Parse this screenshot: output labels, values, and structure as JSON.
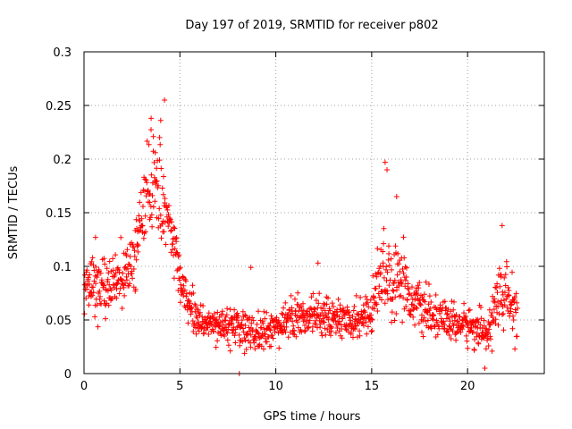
{
  "chart_data": {
    "type": "scatter",
    "title": "Day 197 of 2019, SRMTID for receiver p802",
    "xlabel": "GPS time / hours",
    "ylabel": "SRMTID / TECUs",
    "xlim": [
      0,
      24
    ],
    "ylim": [
      0,
      0.3
    ],
    "xticks": [
      0,
      5,
      10,
      15,
      20
    ],
    "yticks": [
      0,
      0.05,
      0.1,
      0.15,
      0.2,
      0.25,
      0.3
    ],
    "xtick_labels": [
      "0",
      "5",
      "10",
      "15",
      "20"
    ],
    "ytick_labels": [
      "0",
      "0.05",
      "0.1",
      "0.15",
      "0.2",
      "0.25",
      "0.3"
    ],
    "grid": true,
    "marker": "+",
    "color": "#ff0000",
    "profile": [
      {
        "x": 0.0,
        "center": 0.08,
        "spread": 0.022
      },
      {
        "x": 0.5,
        "center": 0.082,
        "spread": 0.022
      },
      {
        "x": 1.0,
        "center": 0.078,
        "spread": 0.022
      },
      {
        "x": 1.5,
        "center": 0.085,
        "spread": 0.022
      },
      {
        "x": 2.0,
        "center": 0.09,
        "spread": 0.025
      },
      {
        "x": 2.5,
        "center": 0.1,
        "spread": 0.025
      },
      {
        "x": 3.0,
        "center": 0.145,
        "spread": 0.035
      },
      {
        "x": 3.5,
        "center": 0.18,
        "spread": 0.04
      },
      {
        "x": 4.0,
        "center": 0.17,
        "spread": 0.04
      },
      {
        "x": 4.5,
        "center": 0.14,
        "spread": 0.035
      },
      {
        "x": 5.0,
        "center": 0.085,
        "spread": 0.02
      },
      {
        "x": 5.5,
        "center": 0.065,
        "spread": 0.018
      },
      {
        "x": 6.0,
        "center": 0.05,
        "spread": 0.016
      },
      {
        "x": 7.0,
        "center": 0.045,
        "spread": 0.015
      },
      {
        "x": 8.0,
        "center": 0.042,
        "spread": 0.015
      },
      {
        "x": 9.0,
        "center": 0.038,
        "spread": 0.016
      },
      {
        "x": 10.0,
        "center": 0.045,
        "spread": 0.016
      },
      {
        "x": 11.0,
        "center": 0.05,
        "spread": 0.016
      },
      {
        "x": 12.0,
        "center": 0.055,
        "spread": 0.016
      },
      {
        "x": 13.0,
        "center": 0.052,
        "spread": 0.016
      },
      {
        "x": 14.0,
        "center": 0.048,
        "spread": 0.015
      },
      {
        "x": 15.0,
        "center": 0.06,
        "spread": 0.018
      },
      {
        "x": 15.5,
        "center": 0.1,
        "spread": 0.04
      },
      {
        "x": 16.0,
        "center": 0.085,
        "spread": 0.03
      },
      {
        "x": 16.5,
        "center": 0.095,
        "spread": 0.03
      },
      {
        "x": 17.0,
        "center": 0.07,
        "spread": 0.02
      },
      {
        "x": 18.0,
        "center": 0.055,
        "spread": 0.016
      },
      {
        "x": 19.0,
        "center": 0.048,
        "spread": 0.016
      },
      {
        "x": 20.0,
        "center": 0.045,
        "spread": 0.016
      },
      {
        "x": 21.0,
        "center": 0.038,
        "spread": 0.015
      },
      {
        "x": 21.5,
        "center": 0.065,
        "spread": 0.025
      },
      {
        "x": 22.0,
        "center": 0.075,
        "spread": 0.025
      },
      {
        "x": 22.6,
        "center": 0.05,
        "spread": 0.018
      }
    ],
    "x_range": [
      0.0,
      22.6
    ],
    "point_count": 1300,
    "outliers": [
      {
        "x": 4.2,
        "y": 0.255
      },
      {
        "x": 3.5,
        "y": 0.238
      },
      {
        "x": 4.0,
        "y": 0.236
      },
      {
        "x": 15.7,
        "y": 0.197
      },
      {
        "x": 15.8,
        "y": 0.19
      },
      {
        "x": 16.3,
        "y": 0.165
      },
      {
        "x": 21.8,
        "y": 0.138
      },
      {
        "x": 8.7,
        "y": 0.099
      },
      {
        "x": 12.2,
        "y": 0.103
      },
      {
        "x": 8.1,
        "y": 0.0
      },
      {
        "x": 20.9,
        "y": 0.005
      },
      {
        "x": 0.6,
        "y": 0.127
      }
    ]
  }
}
